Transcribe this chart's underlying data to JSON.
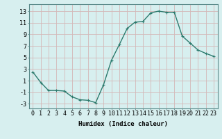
{
  "x": [
    0,
    1,
    2,
    3,
    4,
    5,
    6,
    7,
    8,
    9,
    10,
    11,
    12,
    13,
    14,
    15,
    16,
    17,
    18,
    19,
    20,
    21,
    22,
    23
  ],
  "y": [
    2.5,
    0.7,
    -0.7,
    -0.7,
    -0.8,
    -1.8,
    -2.3,
    -2.4,
    -2.8,
    0.3,
    4.5,
    7.2,
    10.0,
    11.1,
    11.2,
    12.7,
    13.0,
    12.8,
    12.8,
    8.7,
    7.5,
    6.3,
    5.7,
    5.2
  ],
  "line_color": "#2d7b6e",
  "marker": "+",
  "marker_size": 3,
  "background_color": "#d7efef",
  "grid_color_major": "#c8dada",
  "grid_color_minor": "#dce9e9",
  "xlabel": "Humidex (Indice chaleur)",
  "xlim": [
    -0.5,
    23.5
  ],
  "ylim": [
    -3.8,
    14.2
  ],
  "yticks": [
    -3,
    -1,
    1,
    3,
    5,
    7,
    9,
    11,
    13
  ],
  "xtick_labels": [
    "0",
    "1",
    "2",
    "3",
    "4",
    "5",
    "6",
    "7",
    "8",
    "9",
    "10",
    "11",
    "12",
    "13",
    "14",
    "15",
    "16",
    "17",
    "18",
    "19",
    "20",
    "21",
    "22",
    "23"
  ],
  "xlabel_fontsize": 6.5,
  "tick_fontsize": 6.0,
  "line_width": 1.0
}
